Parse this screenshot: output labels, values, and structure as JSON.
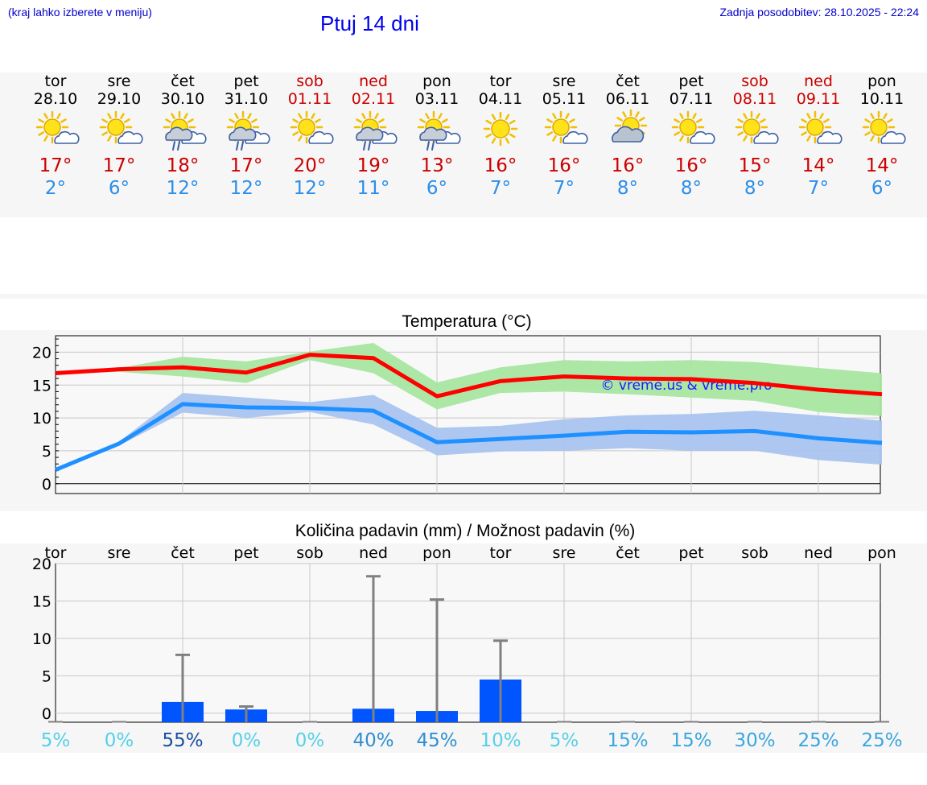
{
  "header": {
    "menu_hint": "(kraj lahko izberete v meniju)",
    "title": "Ptuj 14 dni",
    "last_update": "Zadnja posodobitev: 28.10.2025 - 22:24"
  },
  "colors": {
    "title": "#0000ee",
    "weekend": "#cc0000",
    "weekday": "#000000",
    "tmax": "#cc0000",
    "tmin": "#2b8ee8",
    "max_line": "#ff0000",
    "min_line": "#1e90ff",
    "max_band": "#a8e6a1",
    "min_band": "#a9c4f0",
    "bar": "#0055ff"
  },
  "days": [
    {
      "name": "tor",
      "date": "28.10",
      "icon": "sun-cloud-icon",
      "tmax": "17°",
      "tmin": "2°",
      "weekend": false
    },
    {
      "name": "sre",
      "date": "29.10",
      "icon": "sun-cloud-icon",
      "tmax": "17°",
      "tmin": "6°",
      "weekend": false
    },
    {
      "name": "čet",
      "date": "30.10",
      "icon": "sun-rain-icon",
      "tmax": "18°",
      "tmin": "12°",
      "weekend": false
    },
    {
      "name": "pet",
      "date": "31.10",
      "icon": "sun-rain-icon",
      "tmax": "17°",
      "tmin": "12°",
      "weekend": false
    },
    {
      "name": "sob",
      "date": "01.11",
      "icon": "sun-cloud-icon",
      "tmax": "20°",
      "tmin": "12°",
      "weekend": true
    },
    {
      "name": "ned",
      "date": "02.11",
      "icon": "sun-rain-icon",
      "tmax": "19°",
      "tmin": "11°",
      "weekend": true
    },
    {
      "name": "pon",
      "date": "03.11",
      "icon": "sun-rain-icon",
      "tmax": "13°",
      "tmin": "6°",
      "weekend": false
    },
    {
      "name": "tor",
      "date": "04.11",
      "icon": "sun-icon",
      "tmax": "16°",
      "tmin": "7°",
      "weekend": false
    },
    {
      "name": "sre",
      "date": "05.11",
      "icon": "sun-cloud-icon",
      "tmax": "16°",
      "tmin": "7°",
      "weekend": false
    },
    {
      "name": "čet",
      "date": "06.11",
      "icon": "cloud-sun-icon",
      "tmax": "16°",
      "tmin": "8°",
      "weekend": false
    },
    {
      "name": "pet",
      "date": "07.11",
      "icon": "sun-cloud-icon",
      "tmax": "16°",
      "tmin": "8°",
      "weekend": false
    },
    {
      "name": "sob",
      "date": "08.11",
      "icon": "sun-cloud-icon",
      "tmax": "15°",
      "tmin": "8°",
      "weekend": true
    },
    {
      "name": "ned",
      "date": "09.11",
      "icon": "sun-cloud-icon",
      "tmax": "14°",
      "tmin": "7°",
      "weekend": true
    },
    {
      "name": "pon",
      "date": "10.11",
      "icon": "sun-cloud-icon",
      "tmax": "14°",
      "tmin": "6°",
      "weekend": false
    }
  ],
  "chart_data": [
    {
      "type": "line",
      "title": "Temperatura (°C)",
      "watermark": "© vreme.us & vreme.pro",
      "xlabel": "",
      "ylabel": "",
      "ylim": [
        -1.5,
        22.5
      ],
      "yticks": [
        0,
        5,
        10,
        15,
        20
      ],
      "x": [
        0,
        1,
        2,
        3,
        4,
        5,
        6,
        7,
        8,
        9,
        10,
        11,
        12,
        13
      ],
      "series": [
        {
          "name": "max",
          "values": [
            16.8,
            17.4,
            17.7,
            16.9,
            19.6,
            19.1,
            13.3,
            15.6,
            16.3,
            16.0,
            15.9,
            15.3,
            14.3,
            13.6
          ],
          "band_low": [
            16.8,
            17.0,
            16.3,
            15.3,
            18.8,
            16.8,
            11.3,
            13.8,
            14.0,
            13.6,
            13.1,
            12.6,
            10.9,
            10.3
          ],
          "band_high": [
            16.8,
            17.6,
            19.3,
            18.6,
            20.1,
            21.4,
            15.4,
            17.7,
            18.8,
            18.6,
            18.8,
            18.5,
            17.6,
            16.8
          ]
        },
        {
          "name": "min",
          "values": [
            2.1,
            6.1,
            12.1,
            11.6,
            11.5,
            11.1,
            6.3,
            6.8,
            7.3,
            7.9,
            7.8,
            8.0,
            6.9,
            6.2
          ],
          "band_low": [
            2.1,
            5.8,
            10.8,
            10.0,
            10.9,
            9.0,
            4.3,
            4.9,
            5.0,
            5.4,
            5.0,
            5.0,
            3.6,
            2.9
          ],
          "band_high": [
            2.1,
            6.4,
            13.8,
            13.1,
            12.4,
            13.5,
            8.5,
            8.8,
            9.8,
            10.4,
            10.6,
            11.1,
            10.4,
            9.6
          ]
        }
      ]
    },
    {
      "type": "bar",
      "title": "Količina padavin (mm) / Možnost padavin (%)",
      "categories": [
        "tor",
        "sre",
        "čet",
        "pet",
        "sob",
        "ned",
        "pon",
        "tor",
        "sre",
        "čet",
        "pet",
        "sob",
        "ned",
        "pon"
      ],
      "values": [
        0,
        0,
        1.5,
        0.5,
        0,
        0.6,
        0.3,
        4.5,
        0,
        0,
        0,
        0,
        0,
        0
      ],
      "error_high": [
        0,
        0,
        7.8,
        0.9,
        0,
        18.3,
        15.2,
        9.7,
        0,
        0,
        0,
        0,
        0,
        0
      ],
      "ylim": [
        -1.2,
        20
      ],
      "yticks": [
        0,
        5,
        10,
        15,
        20
      ],
      "probability": [
        "5%",
        "0%",
        "55%",
        "0%",
        "0%",
        "40%",
        "45%",
        "10%",
        "5%",
        "15%",
        "15%",
        "30%",
        "25%",
        "25%"
      ],
      "probability_colors": [
        "#55d0e8",
        "#55d0e8",
        "#1a4fa0",
        "#55d0e8",
        "#55d0e8",
        "#2f8fd0",
        "#2f8fd0",
        "#55d0e8",
        "#55d0e8",
        "#3aa6df",
        "#3aa6df",
        "#3aa6df",
        "#3aa6df",
        "#3aa6df"
      ]
    }
  ]
}
